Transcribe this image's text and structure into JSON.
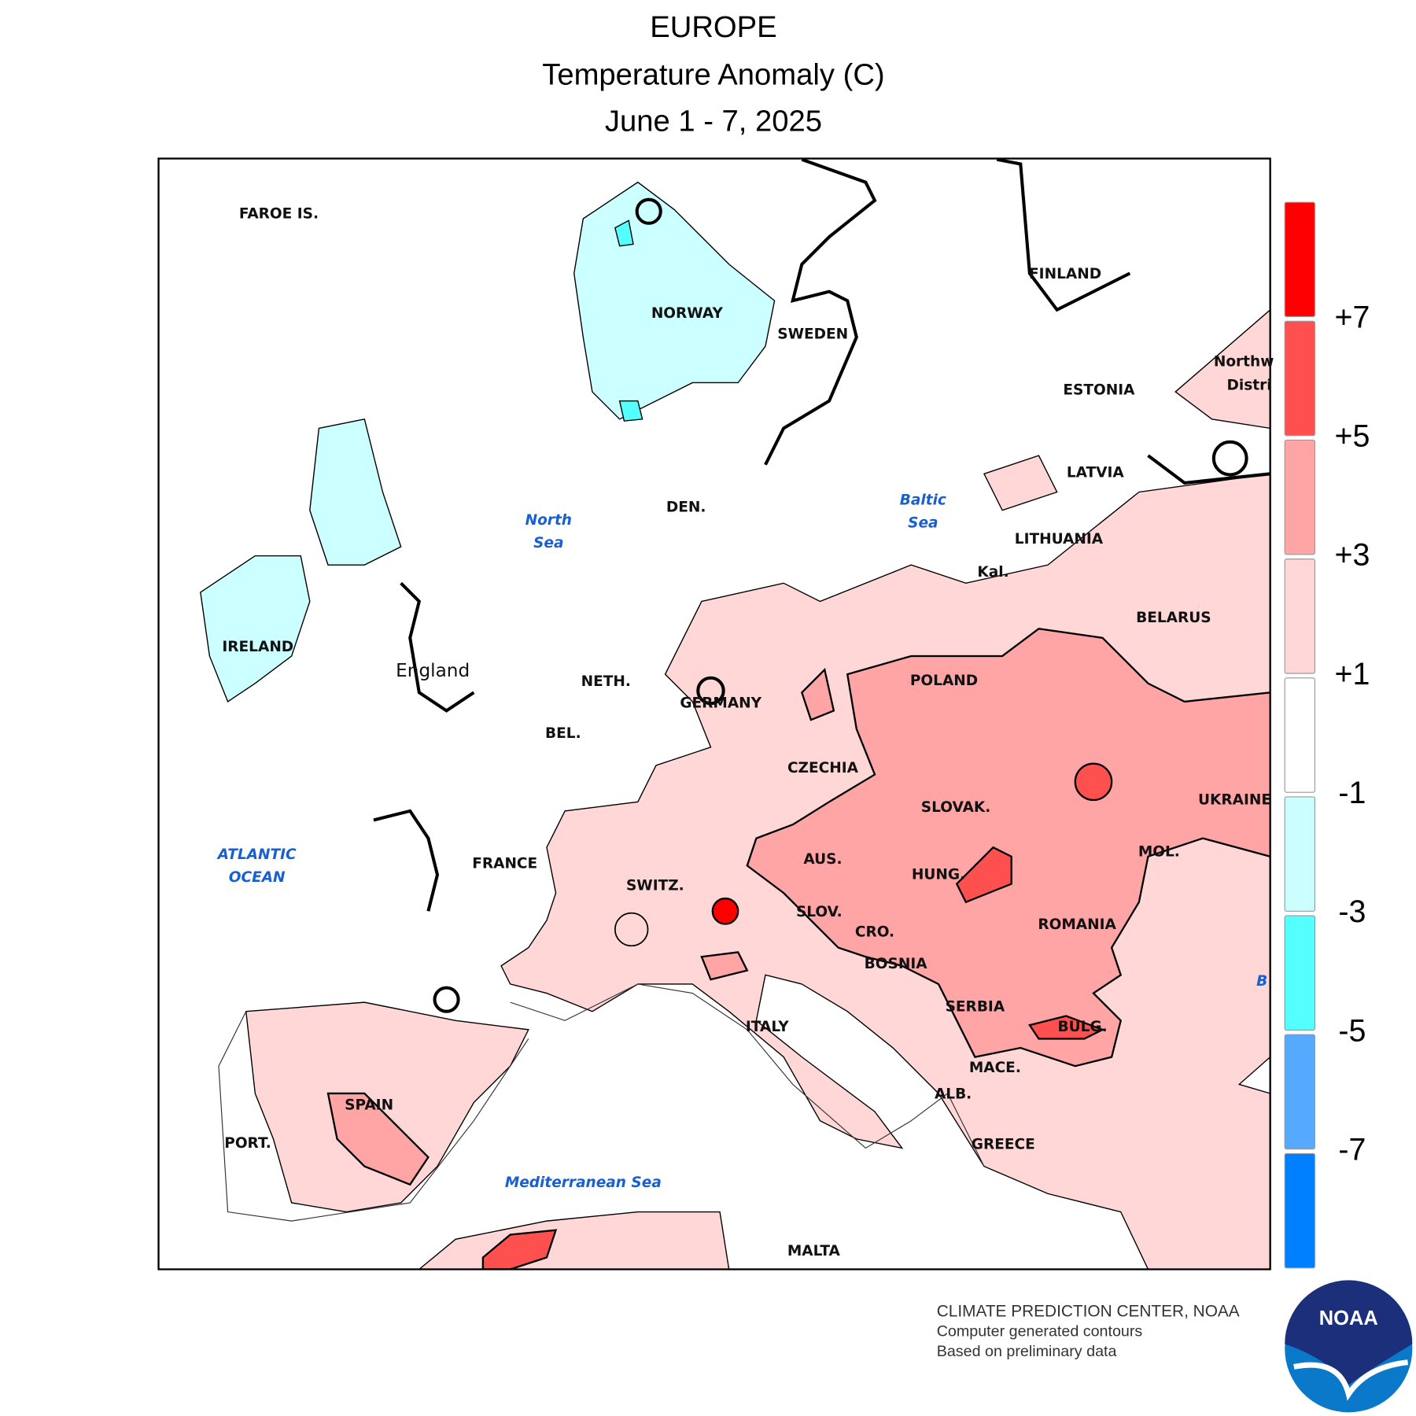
{
  "header": {
    "title": "EUROPE",
    "subtitle": "Temperature Anomaly (C)",
    "period": "June 1 - 7, 2025"
  },
  "map": {
    "labels": [
      "FAROE IS.",
      "NORWAY",
      "SWEDEN",
      "FINLAND",
      "ESTONIA",
      "LATVIA",
      "LITHUANIA",
      "Kal.",
      "BELARUS",
      "IRELAND",
      "England",
      "NETH.",
      "GERMANY",
      "POLAND",
      "BEL.",
      "CZECHIA",
      "SLOVAK.",
      "UKRAINE",
      "FRANCE",
      "AUS.",
      "HUNG.",
      "MOL.",
      "SWITZ.",
      "SLOV.",
      "ROMANIA",
      "CRO.",
      "BOSNIA",
      "SERBIA",
      "ITALY",
      "BULG.",
      "MACE.",
      "ALB.",
      "SPAIN",
      "PORT.",
      "GREECE",
      "MALTA",
      "DEN.",
      "Northw",
      "Distri"
    ],
    "sea_labels": [
      [
        "North",
        "Sea"
      ],
      [
        "Baltic",
        "Sea"
      ],
      [
        "ATLANTIC",
        "OCEAN"
      ],
      [
        "Mediterranean Sea"
      ],
      [
        "B"
      ]
    ]
  },
  "legend": {
    "colors": [
      "#ff0000",
      "#ff5050",
      "#ffa5a5",
      "#ffd7d7",
      "#ffffff",
      "#ccffff",
      "#55ffff",
      "#55aaff",
      "#0080ff"
    ],
    "ticks": [
      {
        "value": 7,
        "label": "+7"
      },
      {
        "value": 5,
        "label": "+5"
      },
      {
        "value": 3,
        "label": "+3"
      },
      {
        "value": 1,
        "label": "+1"
      },
      -1,
      -3,
      -5,
      -7
    ]
  },
  "footer": {
    "lines": [
      "CLIMATE PREDICTION CENTER, NOAA",
      "Computer generated contours",
      "Based on preliminary data"
    ],
    "logo": "NOAA"
  }
}
